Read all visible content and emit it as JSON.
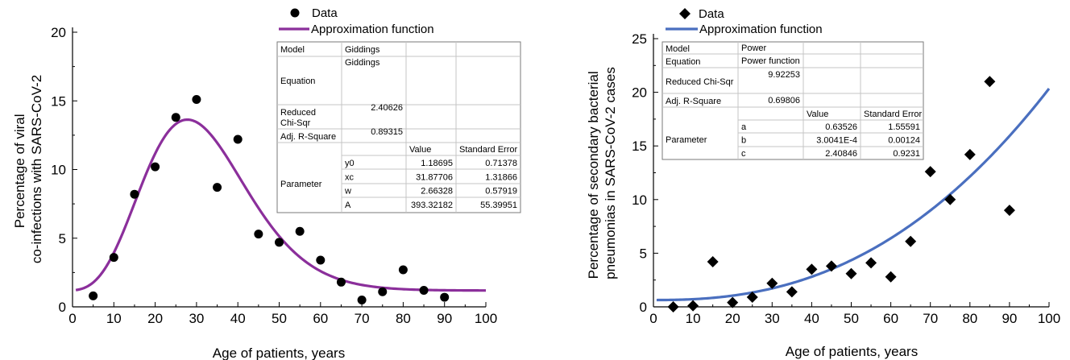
{
  "chart_data": [
    {
      "type": "scatter",
      "xlabel": "Age of patients, years",
      "ylabel_lines": [
        "Percentage of viral",
        "co-infections with SARS-CoV-2"
      ],
      "xlim": [
        0,
        100
      ],
      "ylim": [
        0,
        20
      ],
      "xticks": [
        "0",
        "10",
        "20",
        "30",
        "40",
        "50",
        "60",
        "70",
        "80",
        "90",
        "100"
      ],
      "yticks": [
        "0",
        "5",
        "10",
        "15",
        "20"
      ],
      "legend": {
        "position": "top-center",
        "data_label": "Data",
        "fit_label": "Approximation function",
        "marker": "circle"
      },
      "series": [
        {
          "name": "Data",
          "x": [
            5,
            10,
            15,
            20,
            25,
            30,
            35,
            40,
            45,
            50,
            55,
            60,
            65,
            70,
            75,
            80,
            85,
            90
          ],
          "y": [
            0.8,
            3.6,
            8.2,
            10.2,
            13.8,
            15.1,
            8.7,
            12.2,
            5.3,
            4.7,
            5.5,
            3.4,
            1.8,
            0.5,
            1.1,
            2.7,
            1.2,
            0.7
          ]
        }
      ],
      "fit": {
        "model": "Giddings",
        "params": {
          "y0": 1.18695,
          "xc": 31.87706,
          "w": 2.66328,
          "A": 393.32182
        }
      },
      "colors": {
        "fit": "#8b2f9b",
        "data": "#000000"
      },
      "table": {
        "model_label": "Model",
        "model_value": "Giddings",
        "equation_label": "Equation",
        "equation_value": "Giddings",
        "chisq_label": "Reduced Chi-Sqr",
        "chisq_value": "2.40626",
        "r2_label": "Adj. R-Square",
        "r2_value": "0.89315",
        "value_header": "Value",
        "error_header": "Standard Error",
        "parameter_label": "Parameter",
        "params": [
          {
            "name": "y0",
            "value": "1.18695",
            "error": "0.71378"
          },
          {
            "name": "xc",
            "value": "31.87706",
            "error": "1.31866"
          },
          {
            "name": "w",
            "value": "2.66328",
            "error": "0.57919"
          },
          {
            "name": "A",
            "value": "393.32182",
            "error": "55.39951"
          }
        ]
      }
    },
    {
      "type": "scatter",
      "xlabel": "Age of patients, years",
      "ylabel_lines": [
        "Percentage of secondary bacterial",
        "pneumonias in SARS-CoV-2 cases"
      ],
      "xlim": [
        0,
        100
      ],
      "ylim": [
        0,
        25
      ],
      "xticks": [
        "0",
        "10",
        "20",
        "30",
        "40",
        "50",
        "60",
        "70",
        "80",
        "90",
        "100"
      ],
      "yticks": [
        "0",
        "5",
        "10",
        "15",
        "20",
        "25"
      ],
      "legend": {
        "position": "top-left",
        "data_label": "Data",
        "fit_label": "Approximation function",
        "marker": "diamond"
      },
      "series": [
        {
          "name": "Data",
          "x": [
            5,
            10,
            15,
            20,
            25,
            30,
            35,
            40,
            45,
            50,
            55,
            60,
            65,
            70,
            75,
            80,
            85,
            90
          ],
          "y": [
            0.0,
            0.1,
            4.2,
            0.4,
            0.9,
            2.2,
            1.4,
            3.5,
            3.8,
            3.1,
            4.1,
            2.8,
            6.1,
            12.6,
            10.0,
            14.2,
            21.0,
            9.0
          ]
        }
      ],
      "fit": {
        "model": "Power",
        "params": {
          "a": 0.63526,
          "b": 0.00030041,
          "c": 2.40846
        }
      },
      "colors": {
        "fit": "#4a6fbf",
        "data": "#000000"
      },
      "table": {
        "model_label": "Model",
        "model_value": "Power",
        "equation_label": "Equation",
        "equation_value": "Power function",
        "chisq_label": "Reduced Chi-Sqr",
        "chisq_value": "9.92253",
        "r2_label": "Adj. R-Square",
        "r2_value": "0.69806",
        "value_header": "Value",
        "error_header": "Standard Error",
        "parameter_label": "Parameter",
        "params": [
          {
            "name": "a",
            "value": "0.63526",
            "error": "1.55591"
          },
          {
            "name": "b",
            "value": "3.0041E-4",
            "error": "0.00124"
          },
          {
            "name": "c",
            "value": "2.40846",
            "error": "0.9231"
          }
        ]
      }
    }
  ]
}
